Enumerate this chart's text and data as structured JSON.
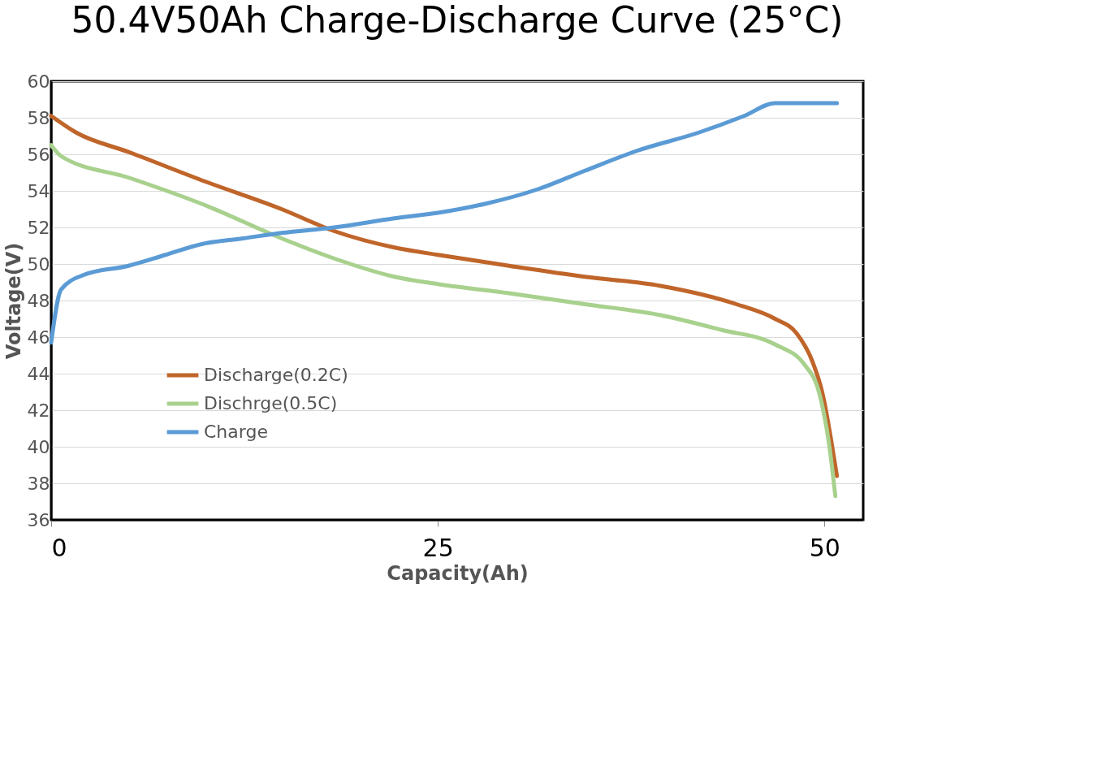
{
  "chart_data": {
    "type": "line",
    "title": "50.4V50Ah Charge-Discharge Curve (25°C)",
    "xlabel": "Capacity(Ah)",
    "ylabel": "Voltage(V)",
    "xlim": [
      0,
      52.5
    ],
    "xticks": [
      0,
      25,
      50
    ],
    "ylim": [
      36,
      60
    ],
    "yticks": [
      36,
      38,
      40,
      42,
      44,
      46,
      48,
      50,
      52,
      54,
      56,
      58,
      60
    ],
    "grid": "y",
    "legend": "left",
    "line_style": "solid",
    "marker": "none",
    "series": [
      {
        "name": "Discharge(0.2C)",
        "color": "#c0652a",
        "x": [
          0,
          1.6,
          5.1,
          10.0,
          14.9,
          18.3,
          22.2,
          25,
          29.6,
          34.5,
          39.4,
          44.3,
          46.8,
          48.2,
          49.2,
          49.9,
          50.4,
          50.8
        ],
        "values": [
          58.1,
          57.2,
          56.1,
          54.5,
          53.0,
          51.8,
          50.9,
          50.5,
          49.9,
          49.3,
          48.8,
          47.8,
          47.0,
          46.2,
          44.7,
          42.8,
          40.5,
          38.4
        ]
      },
      {
        "name": "Dischrge(0.5C)",
        "color": "#a9d18e",
        "x": [
          0,
          0.64,
          5.1,
          10.0,
          14.9,
          18.3,
          22.2,
          25,
          29.6,
          34.5,
          39.4,
          43.3,
          46.8,
          48.7,
          49.7,
          50.3,
          50.7
        ],
        "values": [
          56.5,
          55.9,
          54.7,
          53.2,
          51.4,
          50.3,
          49.3,
          48.9,
          48.4,
          47.8,
          47.2,
          46.4,
          45.6,
          44.5,
          42.8,
          40.1,
          37.3
        ]
      },
      {
        "name": "Charge",
        "color": "#5b9bd5",
        "x": [
          0,
          0.64,
          2.1,
          5.0,
          7.4,
          9.8,
          12.4,
          14.9,
          18.3,
          22.2,
          25,
          28.1,
          31.5,
          34.5,
          37.9,
          41.9,
          44.8,
          46.8,
          50.8
        ],
        "values": [
          45.7,
          48.6,
          49.4,
          49.9,
          50.5,
          51.1,
          51.4,
          51.7,
          52.0,
          52.5,
          52.8,
          53.3,
          54.1,
          55.1,
          56.2,
          57.2,
          58.1,
          58.8,
          58.8
        ]
      }
    ]
  }
}
